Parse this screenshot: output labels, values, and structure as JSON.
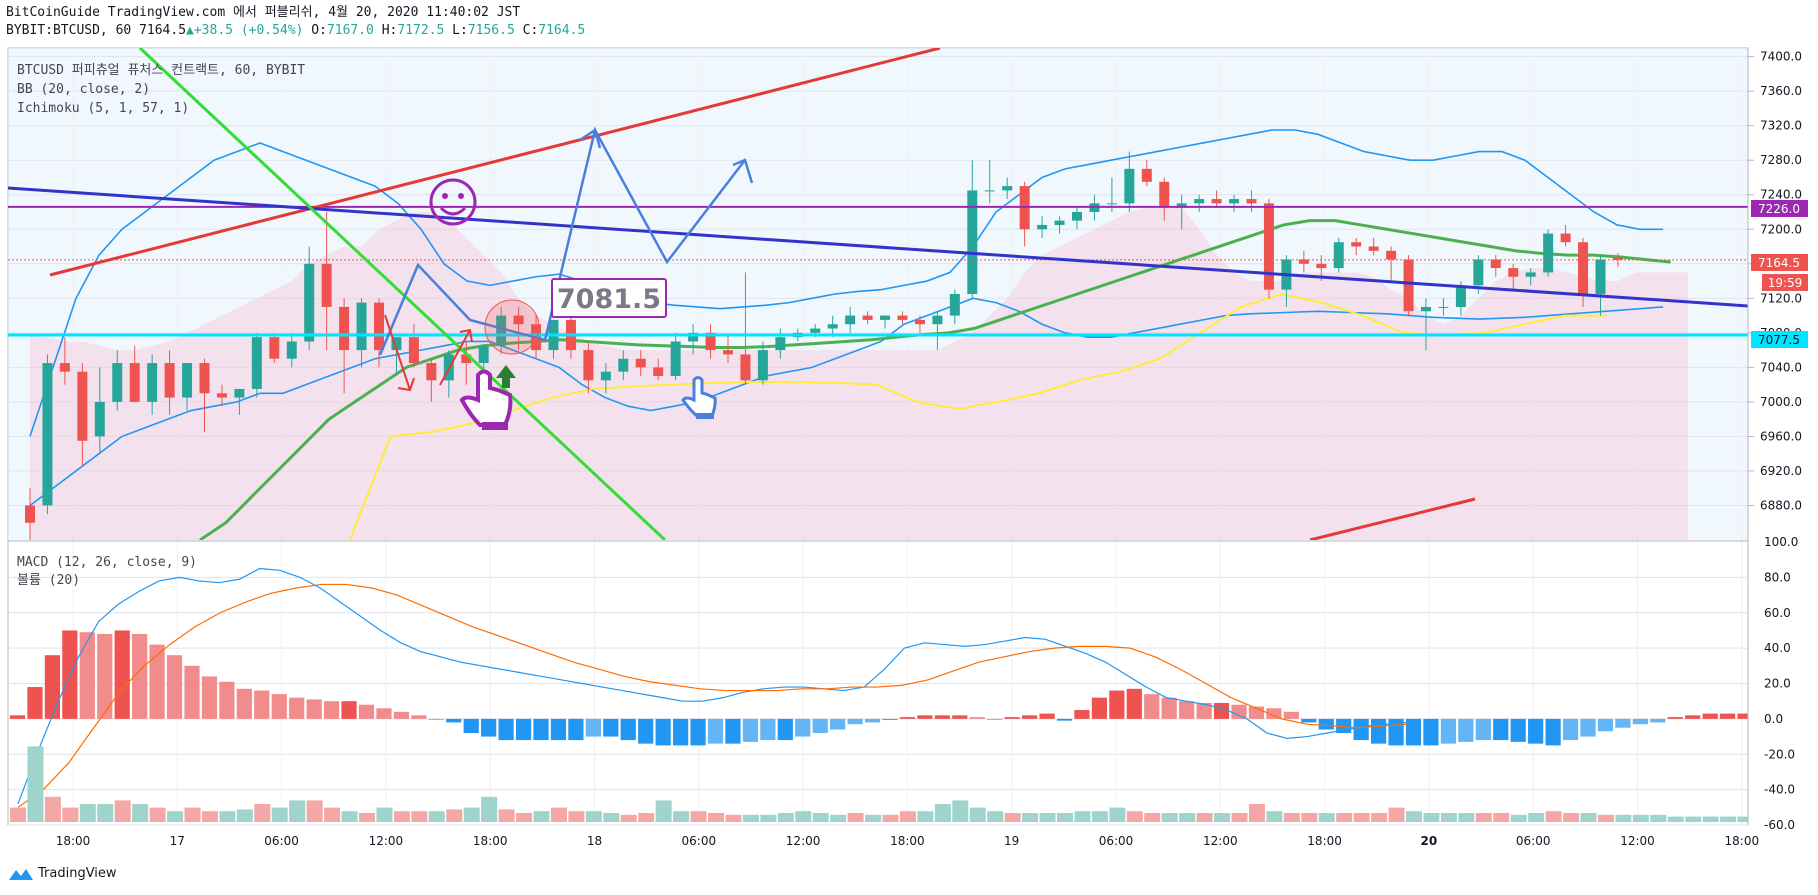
{
  "header": {
    "publish_line": "BitCoinGuide TradingView.com 에서 퍼블리쉬, 4월 20, 2020 11:40:02 JST",
    "symbol": "BYBIT:BTCUSD, 60",
    "last": "7164.5",
    "change": "+38.5 (+0.54%)",
    "o_label": "O:",
    "o": "7167.0",
    "h_label": "H:",
    "h": "7172.5",
    "l_label": "L:",
    "l": "7156.5",
    "c_label": "C:",
    "c": "7164.5"
  },
  "legend": {
    "main": "BTCUSD 퍼피츄얼 퓨처스 컨트랙트, 60, BYBIT",
    "bb": "BB (20, close, 2)",
    "ichimoku": "Ichimoku (5, 1, 57, 1)",
    "macd": "MACD (12, 26, close, 9)",
    "volume": "볼륨 (20)"
  },
  "price_tags": {
    "level_purple": "7226.0",
    "last_price": "7164.5",
    "countdown": "19:59",
    "level_cyan": "7077.5",
    "annotation_box": "7081.5"
  },
  "footer": {
    "brand": "TradingView"
  },
  "colors": {
    "up": "#26a69a",
    "down": "#ef5350",
    "bb": "#2196f3",
    "ichi_green": "#4caf50",
    "ichi_yellow": "#ffeb3b",
    "purple": "#9c27b0",
    "cyan": "#00e5ff",
    "red_line": "#e53935",
    "green_line": "#33dd33",
    "blue_line": "#3333cc",
    "macd_line": "#2196f3",
    "signal_line": "#ff6d00"
  },
  "chart_data": [
    {
      "type": "candlestick",
      "title": "BTCUSD 퍼피츄얼 퓨처스 컨트랙트, 60, BYBIT",
      "ylim": [
        6840,
        7410
      ],
      "y_ticks": [
        7400,
        7360,
        7320,
        7280,
        7240,
        7200,
        7160,
        7120,
        7080,
        7040,
        7000,
        6960,
        6920,
        6880
      ],
      "x_ticks": [
        "18:00",
        "17",
        "06:00",
        "12:00",
        "18:00",
        "18",
        "06:00",
        "12:00",
        "18:00",
        "19",
        "06:00",
        "12:00",
        "18:00",
        "20",
        "06:00",
        "12:00",
        "18:00"
      ],
      "candles": [
        [
          6880,
          6900,
          6840,
          6860
        ],
        [
          6880,
          7055,
          6870,
          7045
        ],
        [
          7045,
          7075,
          7020,
          7035
        ],
        [
          7035,
          7045,
          6925,
          6955
        ],
        [
          6960,
          7040,
          6940,
          7000
        ],
        [
          7000,
          7060,
          6990,
          7045
        ],
        [
          7045,
          7065,
          7000,
          7000
        ],
        [
          7000,
          7055,
          6985,
          7045
        ],
        [
          7045,
          7060,
          6985,
          7005
        ],
        [
          7005,
          7045,
          6990,
          7045
        ],
        [
          7045,
          7050,
          6965,
          7010
        ],
        [
          7010,
          7020,
          6995,
          7005
        ],
        [
          7005,
          7015,
          6985,
          7015
        ],
        [
          7015,
          7080,
          7005,
          7075
        ],
        [
          7075,
          7080,
          7045,
          7050
        ],
        [
          7050,
          7080,
          7040,
          7070
        ],
        [
          7070,
          7180,
          7060,
          7160
        ],
        [
          7160,
          7220,
          7060,
          7110
        ],
        [
          7110,
          7120,
          7010,
          7060
        ],
        [
          7060,
          7120,
          7040,
          7115
        ],
        [
          7115,
          7120,
          7040,
          7060
        ],
        [
          7060,
          7070,
          7030,
          7075
        ],
        [
          7075,
          7090,
          7040,
          7045
        ],
        [
          7045,
          7050,
          7000,
          7025
        ],
        [
          7025,
          7060,
          7005,
          7055
        ],
        [
          7055,
          7070,
          7020,
          7045
        ],
        [
          7045,
          7060,
          7020,
          7065
        ],
        [
          7065,
          7110,
          7055,
          7100
        ],
        [
          7100,
          7110,
          7060,
          7090
        ],
        [
          7090,
          7100,
          7050,
          7060
        ],
        [
          7060,
          7095,
          7050,
          7095
        ],
        [
          7095,
          7100,
          7050,
          7060
        ],
        [
          7060,
          7070,
          7010,
          7025
        ],
        [
          7025,
          7045,
          7010,
          7035
        ],
        [
          7035,
          7060,
          7025,
          7050
        ],
        [
          7050,
          7060,
          7030,
          7040
        ],
        [
          7040,
          7050,
          7025,
          7030
        ],
        [
          7030,
          7080,
          7025,
          7070
        ],
        [
          7070,
          7090,
          7055,
          7080
        ],
        [
          7080,
          7090,
          7050,
          7060
        ],
        [
          7060,
          7080,
          7045,
          7055
        ],
        [
          7055,
          7150,
          7020,
          7025
        ],
        [
          7025,
          7070,
          7020,
          7060
        ],
        [
          7060,
          7085,
          7050,
          7075
        ],
        [
          7075,
          7085,
          7070,
          7080
        ],
        [
          7080,
          7090,
          7075,
          7085
        ],
        [
          7085,
          7100,
          7075,
          7090
        ],
        [
          7090,
          7110,
          7080,
          7100
        ],
        [
          7100,
          7105,
          7090,
          7095
        ],
        [
          7095,
          7100,
          7085,
          7100
        ],
        [
          7100,
          7105,
          7090,
          7095
        ],
        [
          7095,
          7100,
          7080,
          7090
        ],
        [
          7090,
          7105,
          7060,
          7100
        ],
        [
          7100,
          7130,
          7090,
          7125
        ],
        [
          7125,
          7280,
          7120,
          7245
        ],
        [
          7245,
          7280,
          7230,
          7245
        ],
        [
          7245,
          7260,
          7235,
          7250
        ],
        [
          7250,
          7255,
          7180,
          7200
        ],
        [
          7200,
          7215,
          7190,
          7205
        ],
        [
          7205,
          7215,
          7195,
          7210
        ],
        [
          7210,
          7225,
          7200,
          7220
        ],
        [
          7220,
          7240,
          7210,
          7230
        ],
        [
          7230,
          7260,
          7220,
          7230
        ],
        [
          7230,
          7290,
          7220,
          7270
        ],
        [
          7270,
          7280,
          7250,
          7255
        ],
        [
          7255,
          7260,
          7210,
          7225
        ],
        [
          7225,
          7240,
          7200,
          7230
        ],
        [
          7230,
          7240,
          7220,
          7235
        ],
        [
          7235,
          7245,
          7225,
          7230
        ],
        [
          7230,
          7240,
          7220,
          7235
        ],
        [
          7235,
          7245,
          7220,
          7230
        ],
        [
          7230,
          7235,
          7120,
          7130
        ],
        [
          7130,
          7170,
          7110,
          7165
        ],
        [
          7165,
          7175,
          7150,
          7160
        ],
        [
          7160,
          7170,
          7140,
          7155
        ],
        [
          7155,
          7190,
          7150,
          7185
        ],
        [
          7185,
          7190,
          7170,
          7180
        ],
        [
          7180,
          7190,
          7170,
          7175
        ],
        [
          7175,
          7180,
          7140,
          7165
        ],
        [
          7165,
          7170,
          7100,
          7105
        ],
        [
          7105,
          7120,
          7060,
          7110
        ],
        [
          7110,
          7120,
          7100,
          7110
        ],
        [
          7110,
          7140,
          7100,
          7135
        ],
        [
          7135,
          7170,
          7125,
          7165
        ],
        [
          7165,
          7170,
          7145,
          7155
        ],
        [
          7155,
          7160,
          7130,
          7145
        ],
        [
          7145,
          7155,
          7135,
          7150
        ],
        [
          7150,
          7200,
          7145,
          7195
        ],
        [
          7195,
          7205,
          7180,
          7185
        ],
        [
          7185,
          7190,
          7110,
          7125
        ],
        [
          7125,
          7170,
          7100,
          7165
        ],
        [
          7167,
          7172.5,
          7156.5,
          7164.5
        ]
      ],
      "bb_upper": [
        6960,
        7040,
        7120,
        7170,
        7200,
        7220,
        7240,
        7260,
        7280,
        7290,
        7300,
        7290,
        7280,
        7270,
        7260,
        7250,
        7230,
        7200,
        7160,
        7140,
        7135,
        7140,
        7145,
        7148,
        7140,
        7130,
        7120,
        7115,
        7112,
        7110,
        7108,
        7110,
        7112,
        7115,
        7120,
        7125,
        7128,
        7130,
        7135,
        7140,
        7150,
        7180,
        7220,
        7240,
        7260,
        7270,
        7275,
        7280,
        7285,
        7290,
        7295,
        7300,
        7305,
        7310,
        7315,
        7315,
        7310,
        7300,
        7290,
        7285,
        7280,
        7280,
        7285,
        7290,
        7290,
        7280,
        7260,
        7240,
        7220,
        7205,
        7200,
        7200
      ],
      "bb_lower": [
        6880,
        6900,
        6920,
        6940,
        6960,
        6970,
        6980,
        6990,
        6995,
        7000,
        7010,
        7010,
        7020,
        7030,
        7040,
        7050,
        7055,
        7060,
        7065,
        7070,
        7070,
        7060,
        7050,
        7040,
        7020,
        7005,
        6995,
        6990,
        6995,
        7000,
        7010,
        7020,
        7030,
        7035,
        7040,
        7050,
        7060,
        7070,
        7090,
        7100,
        7110,
        7120,
        7115,
        7105,
        7090,
        7080,
        7075,
        7075,
        7080,
        7085,
        7090,
        7095,
        7100,
        7102,
        7103,
        7104,
        7105,
        7104,
        7103,
        7102,
        7100,
        7098,
        7097,
        7096,
        7097,
        7098,
        7100,
        7102,
        7104,
        7106,
        7108,
        7110
      ]
    },
    {
      "type": "bar",
      "title": "MACD (12, 26, close, 9)",
      "ylim": [
        -60,
        100
      ],
      "y_ticks": [
        100,
        80,
        60,
        40,
        20,
        0,
        -20,
        -40,
        -60
      ],
      "histogram": [
        2,
        18,
        36,
        50,
        49,
        48,
        50,
        48,
        42,
        36,
        30,
        24,
        21,
        17,
        16,
        14,
        12,
        11,
        10,
        10,
        8,
        6,
        4,
        2,
        0,
        -2,
        -8,
        -10,
        -12,
        -12,
        -12,
        -12,
        -12,
        -10,
        -10,
        -12,
        -14,
        -15,
        -15,
        -15,
        -14,
        -14,
        -13,
        -12,
        -12,
        -10,
        -8,
        -6,
        -3,
        -2,
        0,
        1,
        2,
        2,
        2,
        1,
        0,
        1,
        2,
        3,
        -1,
        5,
        12,
        16,
        17,
        14,
        12,
        10,
        9,
        9,
        8,
        7,
        6,
        4,
        -2,
        -6,
        -8,
        -12,
        -14,
        -15,
        -15,
        -15,
        -14,
        -13,
        -12,
        -12,
        -13,
        -14,
        -15,
        -12,
        -10,
        -7,
        -5,
        -3,
        -2,
        1,
        2,
        3,
        3,
        3
      ],
      "macd": [
        -48,
        -18,
        10,
        35,
        55,
        65,
        72,
        78,
        80,
        78,
        77,
        79,
        85,
        84,
        80,
        74,
        66,
        58,
        50,
        43,
        38,
        35,
        32,
        30,
        28,
        26,
        24,
        22,
        20,
        18,
        16,
        14,
        12,
        10,
        10,
        12,
        15,
        17,
        18,
        18,
        17,
        16,
        18,
        28,
        40,
        43,
        42,
        41,
        42,
        44,
        46,
        45,
        41,
        37,
        32,
        25,
        18,
        12,
        10,
        8,
        5,
        0,
        -8,
        -11,
        -10,
        -8,
        -6,
        -4,
        -3,
        -2
      ],
      "signal": [
        -50,
        -40,
        -25,
        -5,
        15,
        30,
        42,
        52,
        60,
        66,
        71,
        74,
        76,
        76,
        74,
        70,
        64,
        58,
        52,
        47,
        42,
        37,
        32,
        28,
        24,
        21,
        19,
        17,
        16,
        16,
        16,
        17,
        17,
        18,
        18,
        19,
        22,
        27,
        32,
        35,
        38,
        40,
        41,
        41,
        40,
        35,
        28,
        20,
        12,
        6,
        0,
        -3,
        -4,
        -5,
        -4,
        -3
      ]
    },
    {
      "type": "bar",
      "title": "볼륨 (20)",
      "values": [
        8,
        42,
        14,
        8,
        10,
        10,
        12,
        10,
        8,
        6,
        8,
        6,
        6,
        7,
        10,
        8,
        12,
        12,
        8,
        6,
        5,
        8,
        6,
        6,
        6,
        7,
        8,
        14,
        7,
        5,
        6,
        8,
        6,
        6,
        5,
        4,
        5,
        12,
        6,
        6,
        5,
        4,
        4,
        4,
        5,
        6,
        5,
        4,
        5,
        4,
        4,
        6,
        6,
        10,
        12,
        8,
        6,
        5,
        5,
        5,
        5,
        6,
        6,
        8,
        6,
        5,
        5,
        5,
        5,
        5,
        5,
        10,
        6,
        5,
        5,
        5,
        5,
        5,
        5,
        8,
        6,
        5,
        5,
        5,
        5,
        5,
        4,
        5,
        6,
        5,
        5,
        4,
        4,
        4,
        4,
        3,
        3,
        3,
        3,
        3
      ]
    }
  ]
}
